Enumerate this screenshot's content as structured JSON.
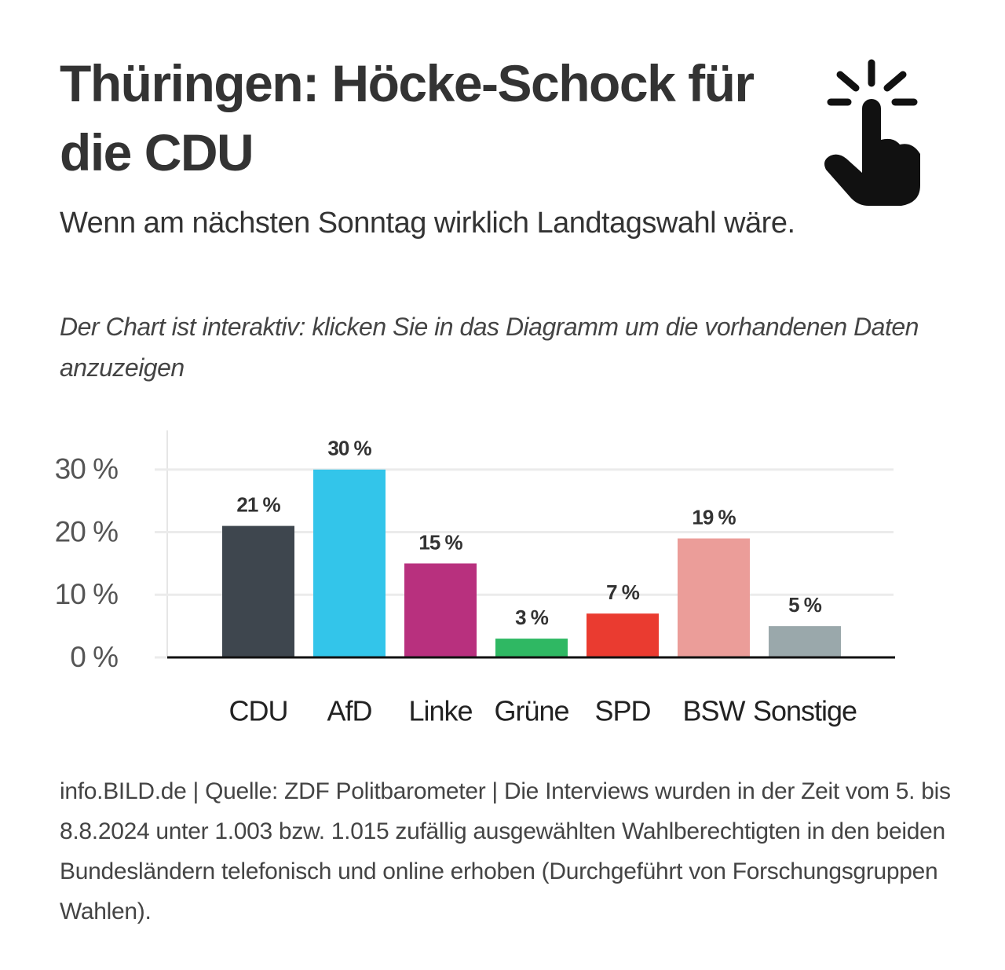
{
  "chart_data": {
    "type": "bar",
    "title": "Thüringen: Höcke-Schock für die CDU",
    "subtitle": "Wenn am nächsten Sonntag wirklich Landtagswahl wäre.",
    "note": "Der Chart ist interaktiv: klicken Sie in das Diagramm um die vorhandenen Daten anzuzeigen",
    "categories": [
      "CDU",
      "AfD",
      "Linke",
      "Grüne",
      "SPD",
      "BSW",
      "Sonstige"
    ],
    "values": [
      21,
      30,
      15,
      3,
      7,
      19,
      5
    ],
    "value_labels": [
      "21 %",
      "30 %",
      "15 %",
      "3 %",
      "7 %",
      "19 %",
      "5 %"
    ],
    "colors": [
      "#3e464e",
      "#33c5ea",
      "#b8307e",
      "#2fb863",
      "#ea3b30",
      "#eb9d99",
      "#9aa8ab"
    ],
    "ylim": [
      0,
      36
    ],
    "yticks": [
      {
        "value": 0,
        "label": "0 %"
      },
      {
        "value": 10,
        "label": "10 %"
      },
      {
        "value": 20,
        "label": "20 %"
      },
      {
        "value": 30,
        "label": "30 %"
      }
    ],
    "grid": true,
    "source": "info.BILD.de | Quelle: ZDF Politbarometer | Die Interviews wurden in der Zeit vom 5. bis 8.8.2024 unter 1.003 bzw. 1.015 zufällig ausgewählten Wahlberechtigten in den beiden Bundesländern telefonisch und online erhoben (Durchgeführt von Forschungsgruppen Wahlen)."
  }
}
